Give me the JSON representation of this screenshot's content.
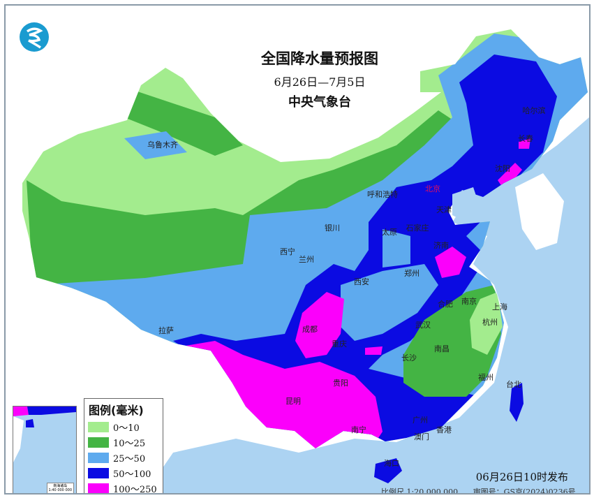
{
  "title": "全国降水量预报图",
  "date_range": "6月26日—7月5日",
  "organization": "中央气象台",
  "issue_time": "06月26日10时发布",
  "scale": "比例尺 1:20 000 000",
  "map_approval": "审图号：GS京(2024)0236号",
  "logo": {
    "icon": "cma-logo-icon",
    "color": "#1a9bd0"
  },
  "legend": {
    "title": "图例(毫米)",
    "items": [
      {
        "label": "0～10",
        "color": "#a3ec8e"
      },
      {
        "label": "10～25",
        "color": "#44b444"
      },
      {
        "label": "25～50",
        "color": "#5eaaee"
      },
      {
        "label": "50～100",
        "color": "#0b0be2"
      },
      {
        "label": "100～250",
        "color": "#fb00fb"
      }
    ]
  },
  "inset": {
    "title": "南海诸岛",
    "scale": "1:40 000 000"
  },
  "colors": {
    "sea": "#acd3f2",
    "neighbor_land": "#ffffff",
    "capital": "#e0105a"
  },
  "cities": [
    "乌鲁木齐",
    "哈尔滨",
    "长春",
    "沈阳",
    "呼和浩特",
    "北京",
    "天津",
    "石家庄",
    "太原",
    "银川",
    "西宁",
    "兰州",
    "济南",
    "郑州",
    "西安",
    "合肥",
    "南京",
    "上海",
    "杭州",
    "武汉",
    "成都",
    "重庆",
    "长沙",
    "南昌",
    "拉萨",
    "贵阳",
    "福州",
    "台北",
    "昆明",
    "南宁",
    "广州",
    "香港",
    "澳门",
    "海口"
  ]
}
